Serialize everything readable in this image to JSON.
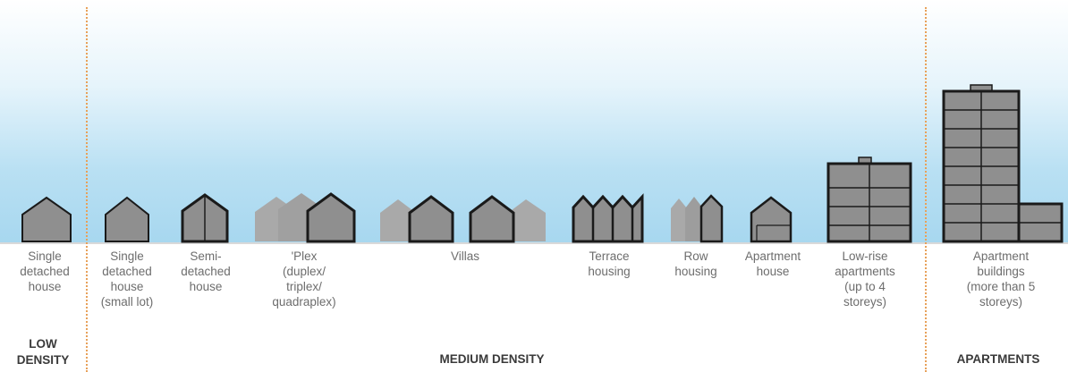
{
  "labels": {
    "single_detached": "Single\ndetached\nhouse",
    "single_small_lot": "Single\ndetached\nhouse\n(small lot)",
    "semi_detached": "Semi-\ndetached\nhouse",
    "plex": "'Plex\n(duplex/\ntriplex/\nquadraplex)",
    "villas": "Villas",
    "terrace": "Terrace\nhousing",
    "row": "Row\nhousing",
    "apartment_house": "Apartment\nhouse",
    "low_rise": "Low-rise\napartments\n(up to 4\nstoreys)",
    "apartment_buildings": "Apartment\nbuildings\n(more than 5\nstoreys)"
  },
  "categories": {
    "low": "LOW\nDENSITY",
    "medium": "MEDIUM DENSITY",
    "apartments": "APARTMENTS"
  },
  "colors": {
    "fill": "#8f8f8f",
    "back_fill": "#a3a3a3",
    "outline": "#1a1a1a",
    "divider": "#e8a15a"
  }
}
